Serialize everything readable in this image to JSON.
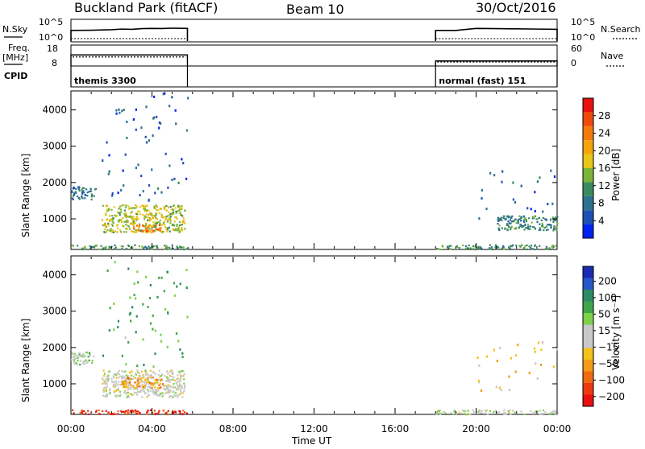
{
  "header": {
    "station": "Buckland Park (fitACF)",
    "beam": "Beam 10",
    "date": "30/Oct/2016"
  },
  "param_panels": {
    "nsky": {
      "left_label": "N.Sky",
      "right_label": "N.Search",
      "left_ticks": [
        "10^5",
        "10^0"
      ],
      "right_ticks": [
        "10^5",
        "10^0"
      ]
    },
    "freq": {
      "left_label_line1": "Freq.",
      "left_label_line2": "[MHz]",
      "right_label": "Nave",
      "left_ticks": [
        "18",
        "8"
      ],
      "right_ticks": [
        "60",
        "0"
      ]
    },
    "cpid": {
      "label": "CPID",
      "segments": [
        {
          "text": "themis 3300",
          "start_hour": 0.0,
          "end_hour": 5.75
        },
        {
          "text": "normal (fast) 151",
          "start_hour": 18.0,
          "end_hour": 24.0
        }
      ]
    }
  },
  "axes": {
    "ylabel": "Slant Range [km]",
    "xlabel": "Time UT",
    "x_ticks": [
      "00:00",
      "04:00",
      "08:00",
      "12:00",
      "16:00",
      "20:00",
      "00:00"
    ],
    "y_ticks": [
      "1000",
      "2000",
      "3000",
      "4000"
    ]
  },
  "colorbars": {
    "power": {
      "label": "Power [dB]",
      "ticks": [
        "4",
        "8",
        "12",
        "16",
        "20",
        "24",
        "28"
      ],
      "colors": [
        "#0022ee",
        "#1f4fb3",
        "#2f6f8f",
        "#3a8a5e",
        "#7ab43a",
        "#e6c619",
        "#f4a50c",
        "#f47a0c",
        "#ef4a0e",
        "#e81010"
      ]
    },
    "velocity": {
      "label": "Velocity [m s⁻¹]",
      "ticks": [
        "200",
        "100",
        "50",
        "15",
        "−15",
        "−50",
        "−100",
        "−200"
      ],
      "colors": [
        "#1a2bb0",
        "#2a57c8",
        "#2e8a64",
        "#3fa44a",
        "#7ed14a",
        "#c8c8c8",
        "#c8c8c8",
        "#f3c21b",
        "#f39a18",
        "#f06a14",
        "#ec3a12",
        "#e81010"
      ]
    }
  },
  "chart_data": [
    {
      "type": "line",
      "title": "N.Sky / N.Search",
      "x_units": "hours UT",
      "series": [
        {
          "name": "N.Sky",
          "x": [
            0,
            1,
            2,
            2.5,
            3,
            3.5,
            4,
            4.5,
            5,
            5.75
          ],
          "y": [
            0.8,
            0.82,
            0.86,
            0.92,
            0.9,
            0.96,
            0.98,
            0.97,
            1.0,
            0.98
          ]
        },
        {
          "name": "N.Search",
          "x": [
            0,
            5.75,
            18,
            24
          ],
          "y": [
            0.0,
            0.0,
            0.0,
            0.0
          ]
        },
        {
          "name": "N.Sky",
          "x": [
            18,
            19,
            20,
            21,
            22,
            23,
            24
          ],
          "y": [
            0.8,
            0.8,
            0.98,
            0.96,
            0.94,
            0.92,
            0.9
          ]
        }
      ]
    },
    {
      "type": "line",
      "title": "Freq. [MHz] / Nave",
      "x_units": "hours UT",
      "series": [
        {
          "name": "Freq.",
          "x": [
            0,
            5.75
          ],
          "y": [
            13.5,
            13.5
          ]
        },
        {
          "name": "Freq.",
          "x": [
            18,
            24
          ],
          "y": [
            10.5,
            10.5
          ]
        },
        {
          "name": "Nave",
          "x": [
            0,
            5.75
          ],
          "y": [
            27,
            27
          ]
        },
        {
          "name": "Nave",
          "x": [
            18,
            24
          ],
          "y": [
            12,
            12
          ]
        }
      ]
    },
    {
      "type": "heatmap",
      "title": "Power [dB]",
      "xlabel": "Time UT",
      "ylabel": "Slant Range [km]",
      "xlim": [
        0,
        24
      ],
      "ylim": [
        180,
        4500
      ],
      "regions": [
        {
          "t": [
            0.0,
            5.75
          ],
          "range_km": [
            180,
            300
          ],
          "level": "ground scatter",
          "power_db": 12
        },
        {
          "t": [
            0.0,
            1.2
          ],
          "range_km": [
            1550,
            1900
          ],
          "power_db": 8
        },
        {
          "t": [
            1.5,
            5.6
          ],
          "range_km": [
            650,
            1400
          ],
          "power_db": 16
        },
        {
          "t": [
            3.0,
            4.5
          ],
          "range_km": [
            650,
            850
          ],
          "power_db": 24
        },
        {
          "t": [
            1.5,
            5.75
          ],
          "range_km": [
            1500,
            4500
          ],
          "power_db": 6,
          "sparse": true
        },
        {
          "t": [
            18.0,
            24.0
          ],
          "range_km": [
            180,
            300
          ],
          "power_db": 12
        },
        {
          "t": [
            21.0,
            24.0
          ],
          "range_km": [
            700,
            1100
          ],
          "power_db": 10
        },
        {
          "t": [
            20.0,
            24.0
          ],
          "range_km": [
            1000,
            2400
          ],
          "power_db": 6,
          "sparse": true
        }
      ]
    },
    {
      "type": "heatmap",
      "title": "Velocity [m s⁻¹]",
      "xlabel": "Time UT",
      "ylabel": "Slant Range [km]",
      "xlim": [
        0,
        24
      ],
      "ylim": [
        180,
        4500
      ],
      "regions": [
        {
          "t": [
            0.0,
            5.75
          ],
          "range_km": [
            180,
            300
          ],
          "velocity": -200
        },
        {
          "t": [
            0.0,
            1.2
          ],
          "range_km": [
            1550,
            1900
          ],
          "velocity": 50
        },
        {
          "t": [
            1.5,
            5.6
          ],
          "range_km": [
            650,
            1400
          ],
          "velocity": 0
        },
        {
          "t": [
            2.5,
            4.5
          ],
          "range_km": [
            900,
            1200
          ],
          "velocity": -100
        },
        {
          "t": [
            1.5,
            5.75
          ],
          "range_km": [
            1500,
            4500
          ],
          "velocity": 100,
          "sparse": true
        },
        {
          "t": [
            18.0,
            24.0
          ],
          "range_km": [
            180,
            300
          ],
          "velocity": 15
        },
        {
          "t": [
            20.0,
            24.0
          ],
          "range_km": [
            700,
            2200
          ],
          "velocity": -50,
          "sparse": true
        }
      ]
    }
  ]
}
